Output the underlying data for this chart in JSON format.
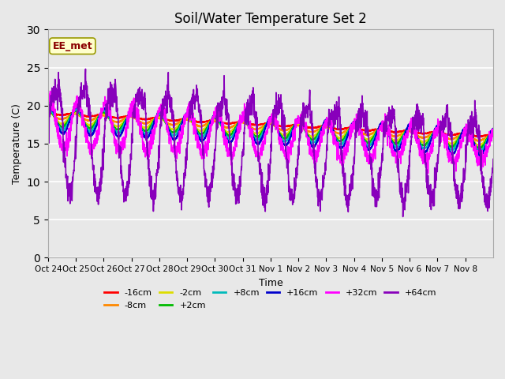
{
  "title": "Soil/Water Temperature Set 2",
  "xlabel": "Time",
  "ylabel": "Temperature (C)",
  "ylim": [
    0,
    30
  ],
  "yticks": [
    0,
    5,
    10,
    15,
    20,
    25,
    30
  ],
  "fig_facecolor": "#e8e8e8",
  "ax_facecolor": "#e8e8e8",
  "annotation_text": "EE_met",
  "annotation_color": "#8b0000",
  "annotation_bg": "#ffffcc",
  "annotation_border": "#999900",
  "series_colors": {
    "-16cm": "#ff0000",
    "-8cm": "#ff8800",
    "-2cm": "#dddd00",
    "+2cm": "#00bb00",
    "+8cm": "#00bbbb",
    "+16cm": "#0000cc",
    "+32cm": "#ff00ff",
    "+64cm": "#8800bb"
  },
  "x_tick_labels": [
    "Oct 24",
    "Oct 25",
    "Oct 26",
    "Oct 27",
    "Oct 28",
    "Oct 29",
    "Oct 30",
    "Oct 31",
    "Nov 1",
    "Nov 2",
    "Nov 3",
    "Nov 4",
    "Nov 5",
    "Nov 6",
    "Nov 7",
    "Nov 8"
  ],
  "n_days": 16,
  "pts_per_day": 144
}
